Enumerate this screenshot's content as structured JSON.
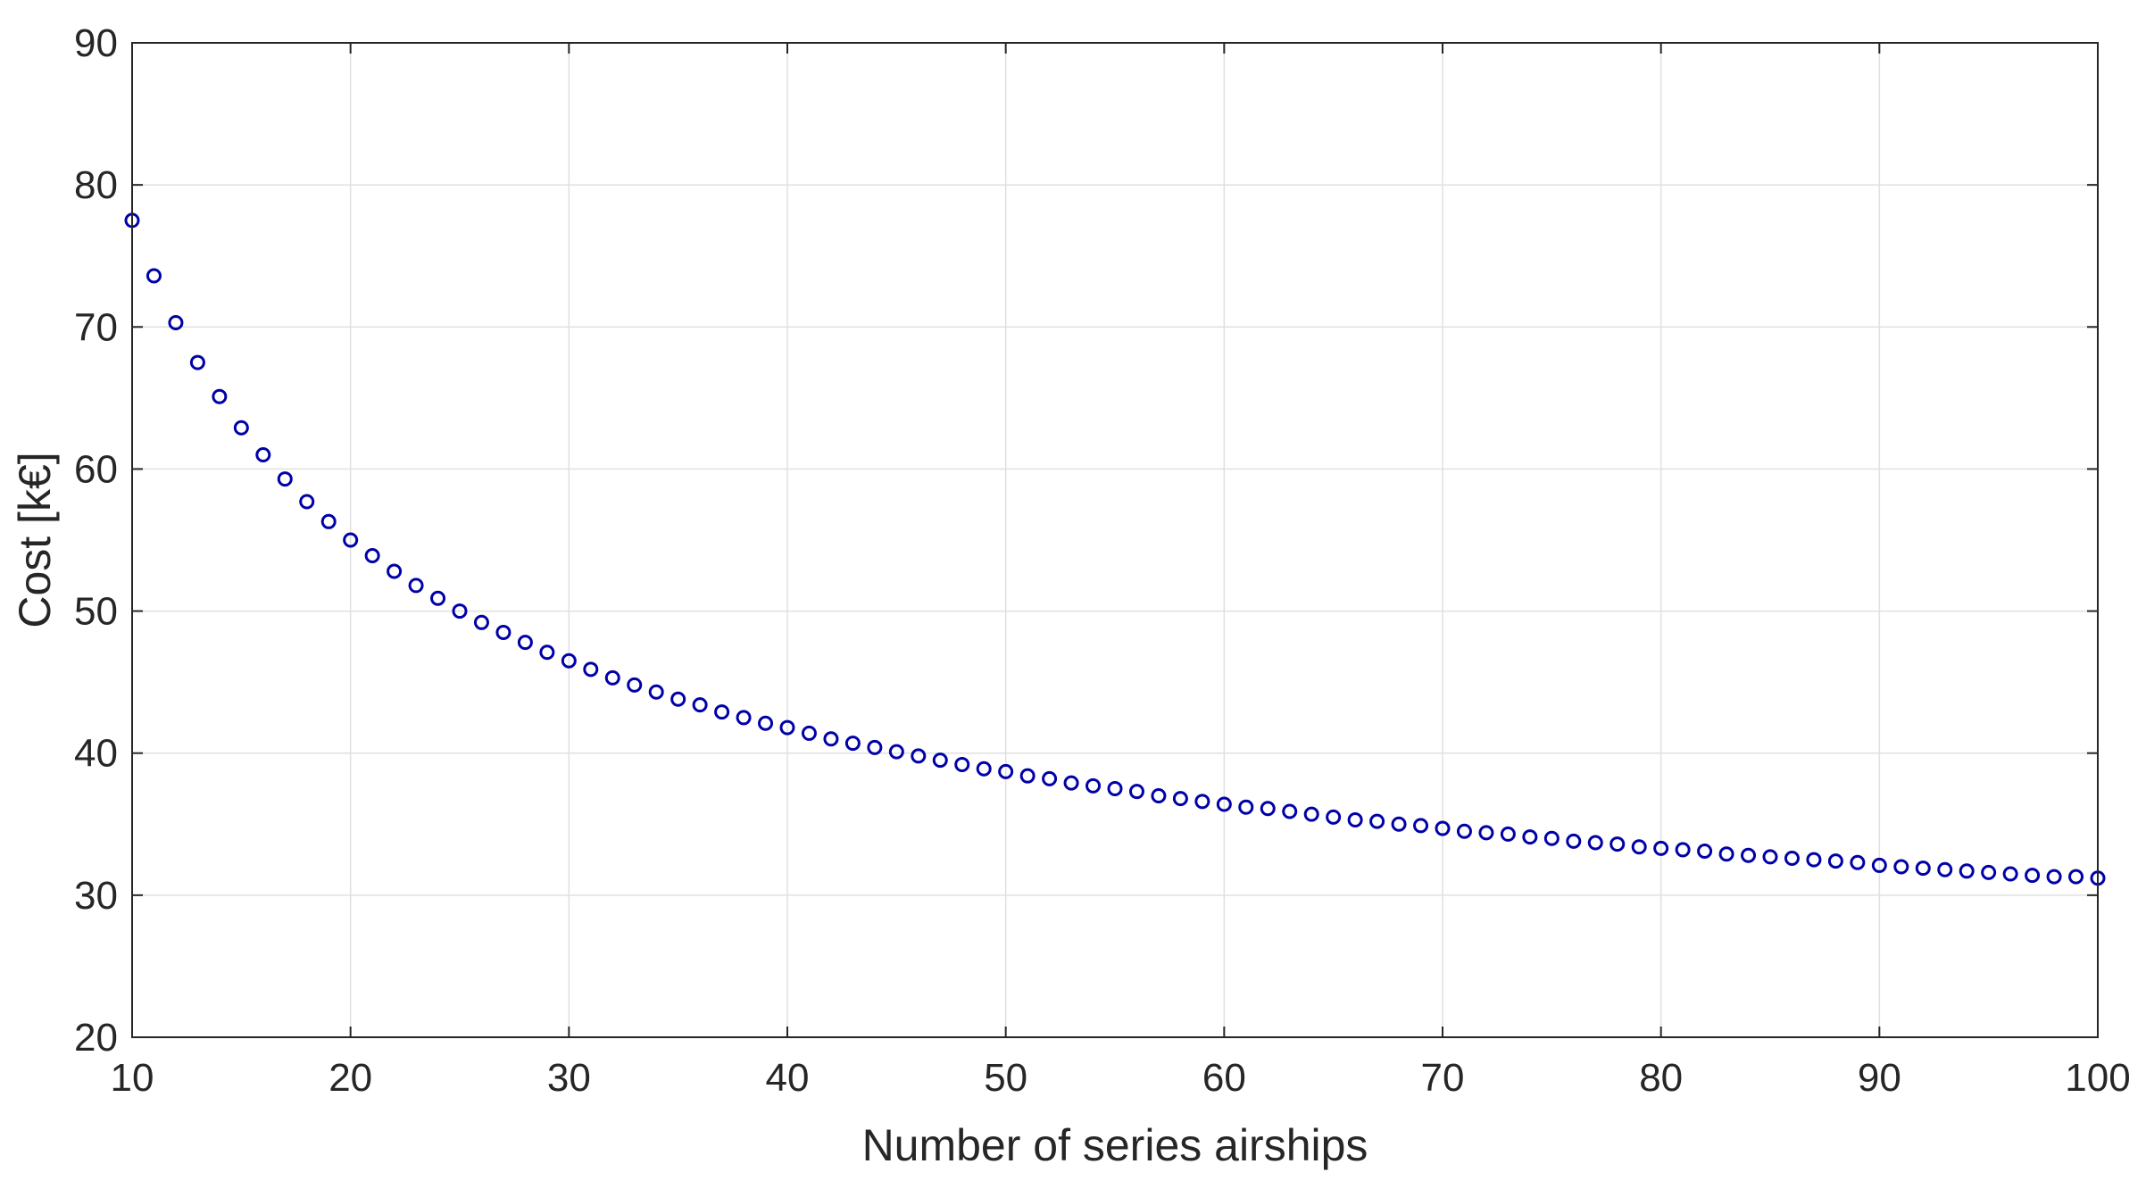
{
  "chart_data": {
    "type": "scatter",
    "title": "",
    "xlabel": "Number of series airships",
    "ylabel": "Cost [k€]",
    "xlim": [
      10,
      100
    ],
    "ylim": [
      20,
      90
    ],
    "xticks": [
      10,
      20,
      30,
      40,
      50,
      60,
      70,
      80,
      90,
      100
    ],
    "yticks": [
      20,
      30,
      40,
      50,
      60,
      70,
      80,
      90
    ],
    "grid": true,
    "marker": "open-circle",
    "colors": {
      "series": "#0000a8",
      "grid": "#e0e0e0",
      "axis": "#262626"
    },
    "series": [
      {
        "x": [
          10,
          11,
          12,
          13,
          14,
          15,
          16,
          17,
          18,
          19,
          20,
          21,
          22,
          23,
          24,
          25,
          26,
          27,
          28,
          29,
          30,
          31,
          32,
          33,
          34,
          35,
          36,
          37,
          38,
          39,
          40,
          41,
          42,
          43,
          44,
          45,
          46,
          47,
          48,
          49,
          50,
          51,
          52,
          53,
          54,
          55,
          56,
          57,
          58,
          59,
          60,
          61,
          62,
          63,
          64,
          65,
          66,
          67,
          68,
          69,
          70,
          71,
          72,
          73,
          74,
          75,
          76,
          77,
          78,
          79,
          80,
          81,
          82,
          83,
          84,
          85,
          86,
          87,
          88,
          89,
          90,
          91,
          92,
          93,
          94,
          95,
          96,
          97,
          98,
          99,
          100
        ],
        "y": [
          77.5,
          73.6,
          70.3,
          67.5,
          65.1,
          62.9,
          61.0,
          59.3,
          57.7,
          56.3,
          55.0,
          53.9,
          52.8,
          51.8,
          50.9,
          50.0,
          49.2,
          48.5,
          47.8,
          47.1,
          46.5,
          45.9,
          45.3,
          44.8,
          44.3,
          43.8,
          43.4,
          42.9,
          42.5,
          42.1,
          41.8,
          41.4,
          41.0,
          40.7,
          40.4,
          40.1,
          39.8,
          39.5,
          39.2,
          38.9,
          38.7,
          38.4,
          38.2,
          37.9,
          37.7,
          37.5,
          37.3,
          37.0,
          36.8,
          36.6,
          36.4,
          36.2,
          36.1,
          35.9,
          35.7,
          35.5,
          35.3,
          35.2,
          35.0,
          34.9,
          34.7,
          34.5,
          34.4,
          34.3,
          34.1,
          34.0,
          33.8,
          33.7,
          33.6,
          33.4,
          33.3,
          33.2,
          33.1,
          32.9,
          32.8,
          32.7,
          32.6,
          32.5,
          32.4,
          32.3,
          32.1,
          32.0,
          31.9,
          31.8,
          31.7,
          31.6,
          31.5,
          31.4,
          31.3,
          31.3,
          31.2
        ]
      }
    ]
  }
}
